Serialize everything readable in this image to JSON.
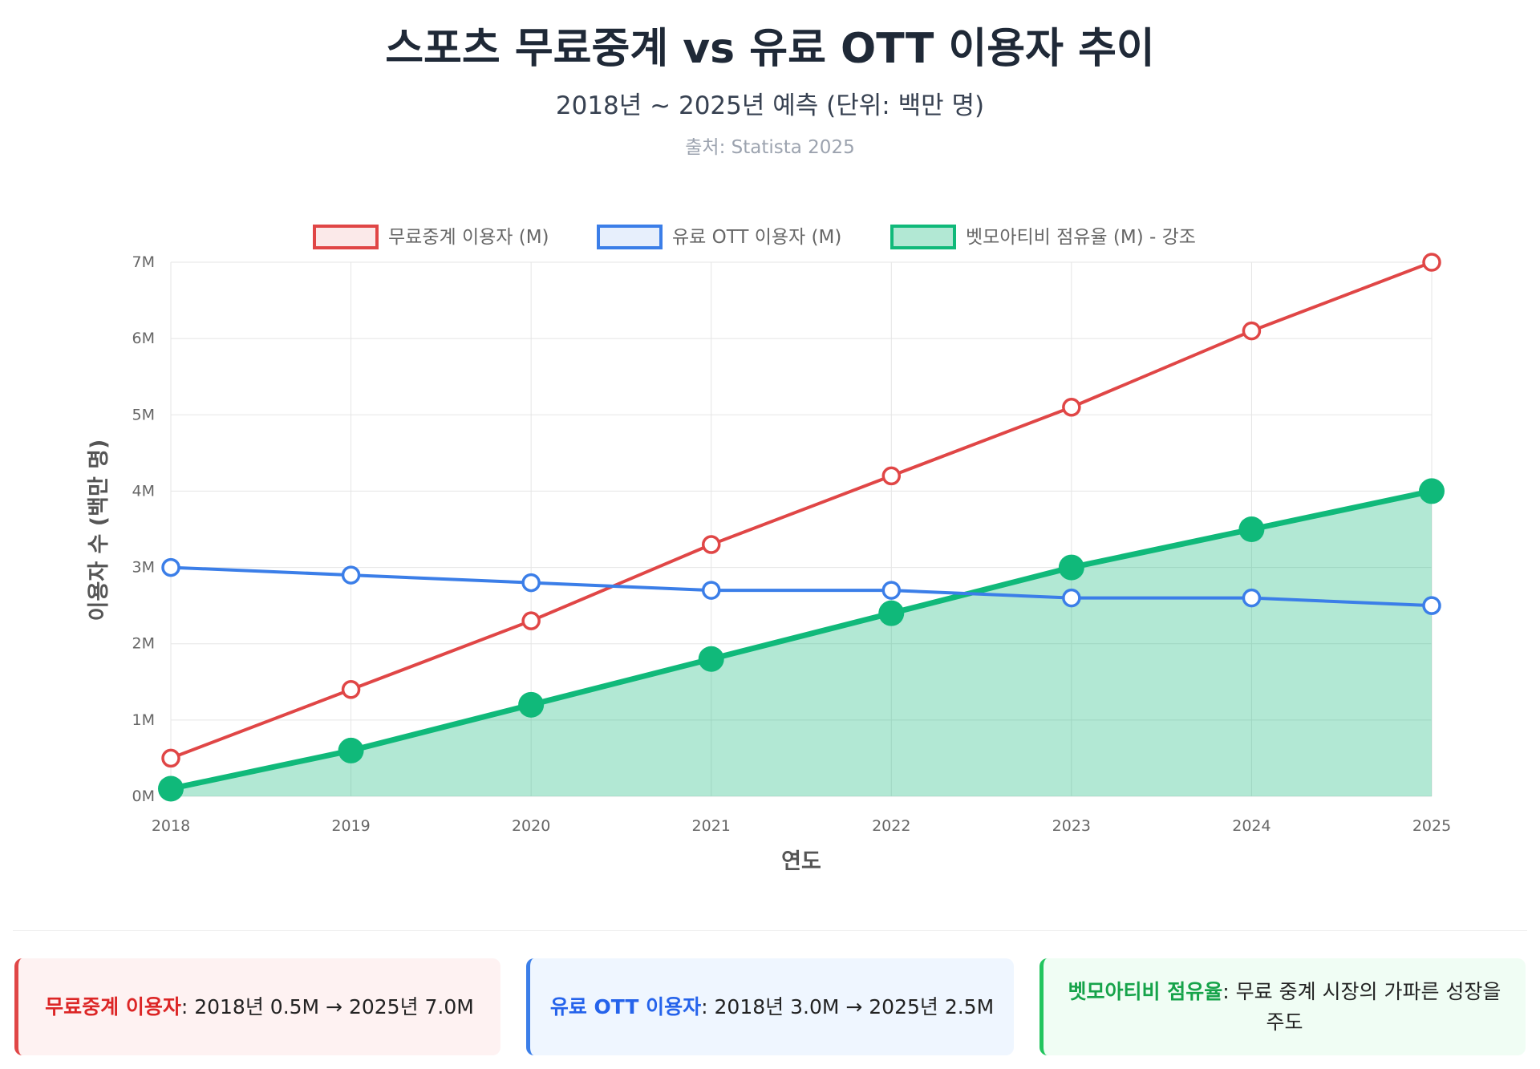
{
  "header": {
    "title": "스포츠 무료중계 vs 유료 OTT 이용자 추이",
    "subtitle": "2018년 ~ 2025년 예측 (단위: 백만 명)",
    "source": "출처: Statista 2025"
  },
  "chart_data": {
    "type": "line",
    "title": "스포츠 무료중계 vs 유료 OTT 이용자 추이",
    "xlabel": "연도",
    "ylabel": "이용자 수 (백만 명)",
    "categories": [
      "2018",
      "2019",
      "2020",
      "2021",
      "2022",
      "2023",
      "2024",
      "2025"
    ],
    "ylim": [
      0,
      7
    ],
    "yticks": [
      "0M",
      "1M",
      "2M",
      "3M",
      "4M",
      "5M",
      "6M",
      "7M"
    ],
    "grid": true,
    "legend": "top",
    "series": [
      {
        "name": "무료중계 이용자 (M)",
        "values": [
          0.5,
          1.4,
          2.3,
          3.3,
          4.2,
          5.1,
          6.1,
          7.0
        ],
        "color": "#e04646",
        "fill": false
      },
      {
        "name": "유료 OTT 이용자 (M)",
        "values": [
          3.0,
          2.9,
          2.8,
          2.7,
          2.7,
          2.6,
          2.6,
          2.5
        ],
        "color": "#3b7ee8",
        "fill": false
      },
      {
        "name": "벳모아티비 점유율 (M) - 강조",
        "values": [
          0.1,
          0.6,
          1.2,
          1.8,
          2.4,
          3.0,
          3.5,
          4.0
        ],
        "color": "#10b97a",
        "fill": true
      }
    ]
  },
  "cards": [
    {
      "label": "무료중계 이용자",
      "text": ": 2018년 0.5M → 2025년 7.0M",
      "color": "#dc2626",
      "bg": "#fef2f2",
      "border": "#e04646"
    },
    {
      "label": "유료 OTT 이용자",
      "text": ": 2018년 3.0M → 2025년 2.5M",
      "color": "#2563eb",
      "bg": "#eff6ff",
      "border": "#3b7ee8"
    },
    {
      "label": "벳모아티비 점유율",
      "text": ": 무료 중계 시장의 가파른 성장을 주도",
      "color": "#16a34a",
      "bg": "#f0fdf4",
      "border": "#22c55e"
    }
  ]
}
